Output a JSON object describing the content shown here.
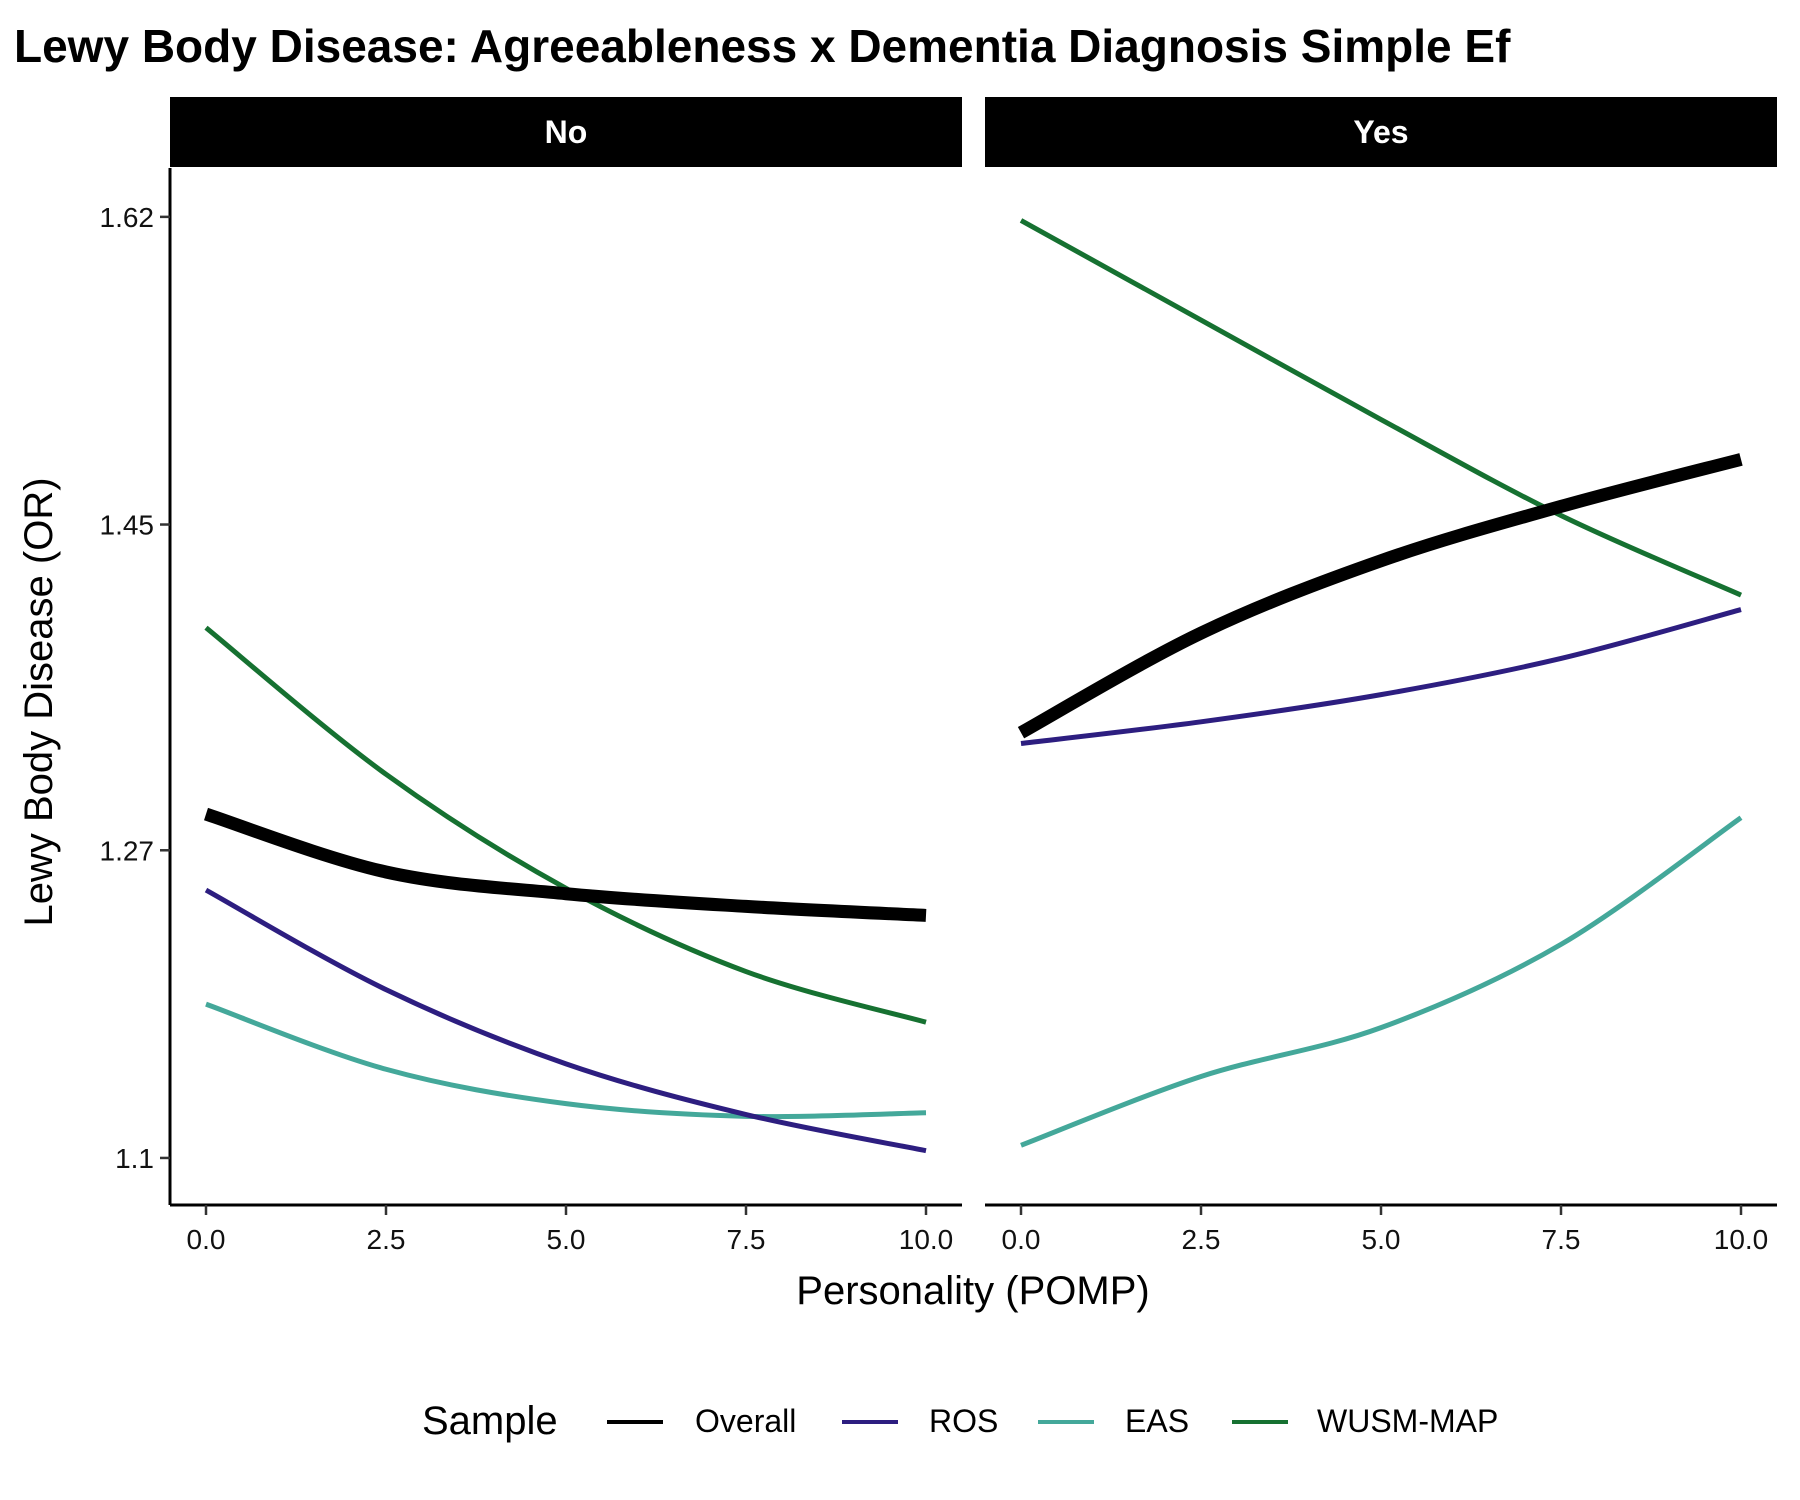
{
  "chart_data": {
    "type": "line",
    "title": "Lewy Body Disease: Agreeableness x Dementia Diagnosis Simple Ef",
    "xlabel": "Personality (POMP)",
    "ylabel": "Lewy Body Disease (OR)",
    "xlim": [
      -0.5,
      10.5
    ],
    "ylim": [
      1.074,
      1.647
    ],
    "xticks": [
      0,
      2.5,
      5,
      7.5,
      10
    ],
    "xtick_labels": [
      "0.0",
      "2.5",
      "5.0",
      "7.5",
      "10.0"
    ],
    "yticks": [
      1.1,
      1.27,
      1.45,
      1.62
    ],
    "ytick_labels": [
      "1.1",
      "1.27",
      "1.45",
      "1.62"
    ],
    "grid": false,
    "legend": {
      "title": "Sample",
      "position": "bottom",
      "entries": [
        "Overall",
        "ROS",
        "EAS",
        "WUSM-MAP"
      ]
    },
    "panels": [
      {
        "label": "No",
        "x": [
          0,
          2.5,
          5,
          7.5,
          10
        ],
        "series": [
          {
            "name": "Overall",
            "color": "#000000",
            "width": "thick",
            "values": [
              1.29,
              1.258,
              1.246,
              1.239,
              1.234
            ]
          },
          {
            "name": "ROS",
            "color": "#2d1e80",
            "width": "normal",
            "values": [
              1.248,
              1.193,
              1.152,
              1.124,
              1.104
            ]
          },
          {
            "name": "EAS",
            "color": "#44a89a",
            "width": "normal",
            "values": [
              1.185,
              1.149,
              1.13,
              1.123,
              1.125
            ]
          },
          {
            "name": "WUSM-MAP",
            "color": "#167131",
            "width": "normal",
            "values": [
              1.393,
              1.312,
              1.249,
              1.203,
              1.175
            ]
          }
        ]
      },
      {
        "label": "Yes",
        "x": [
          0,
          2.5,
          5,
          7.5,
          10
        ],
        "series": [
          {
            "name": "Overall",
            "color": "#000000",
            "width": "thick",
            "values": [
              1.335,
              1.39,
              1.43,
              1.46,
              1.486
            ]
          },
          {
            "name": "ROS",
            "color": "#2d1e80",
            "width": "normal",
            "values": [
              1.329,
              1.341,
              1.356,
              1.376,
              1.403
            ]
          },
          {
            "name": "EAS",
            "color": "#44a89a",
            "width": "normal",
            "values": [
              1.107,
              1.145,
              1.172,
              1.218,
              1.288
            ]
          },
          {
            "name": "WUSM-MAP",
            "color": "#167131",
            "width": "normal",
            "values": [
              1.618,
              1.563,
              1.508,
              1.455,
              1.411
            ]
          }
        ]
      }
    ]
  }
}
